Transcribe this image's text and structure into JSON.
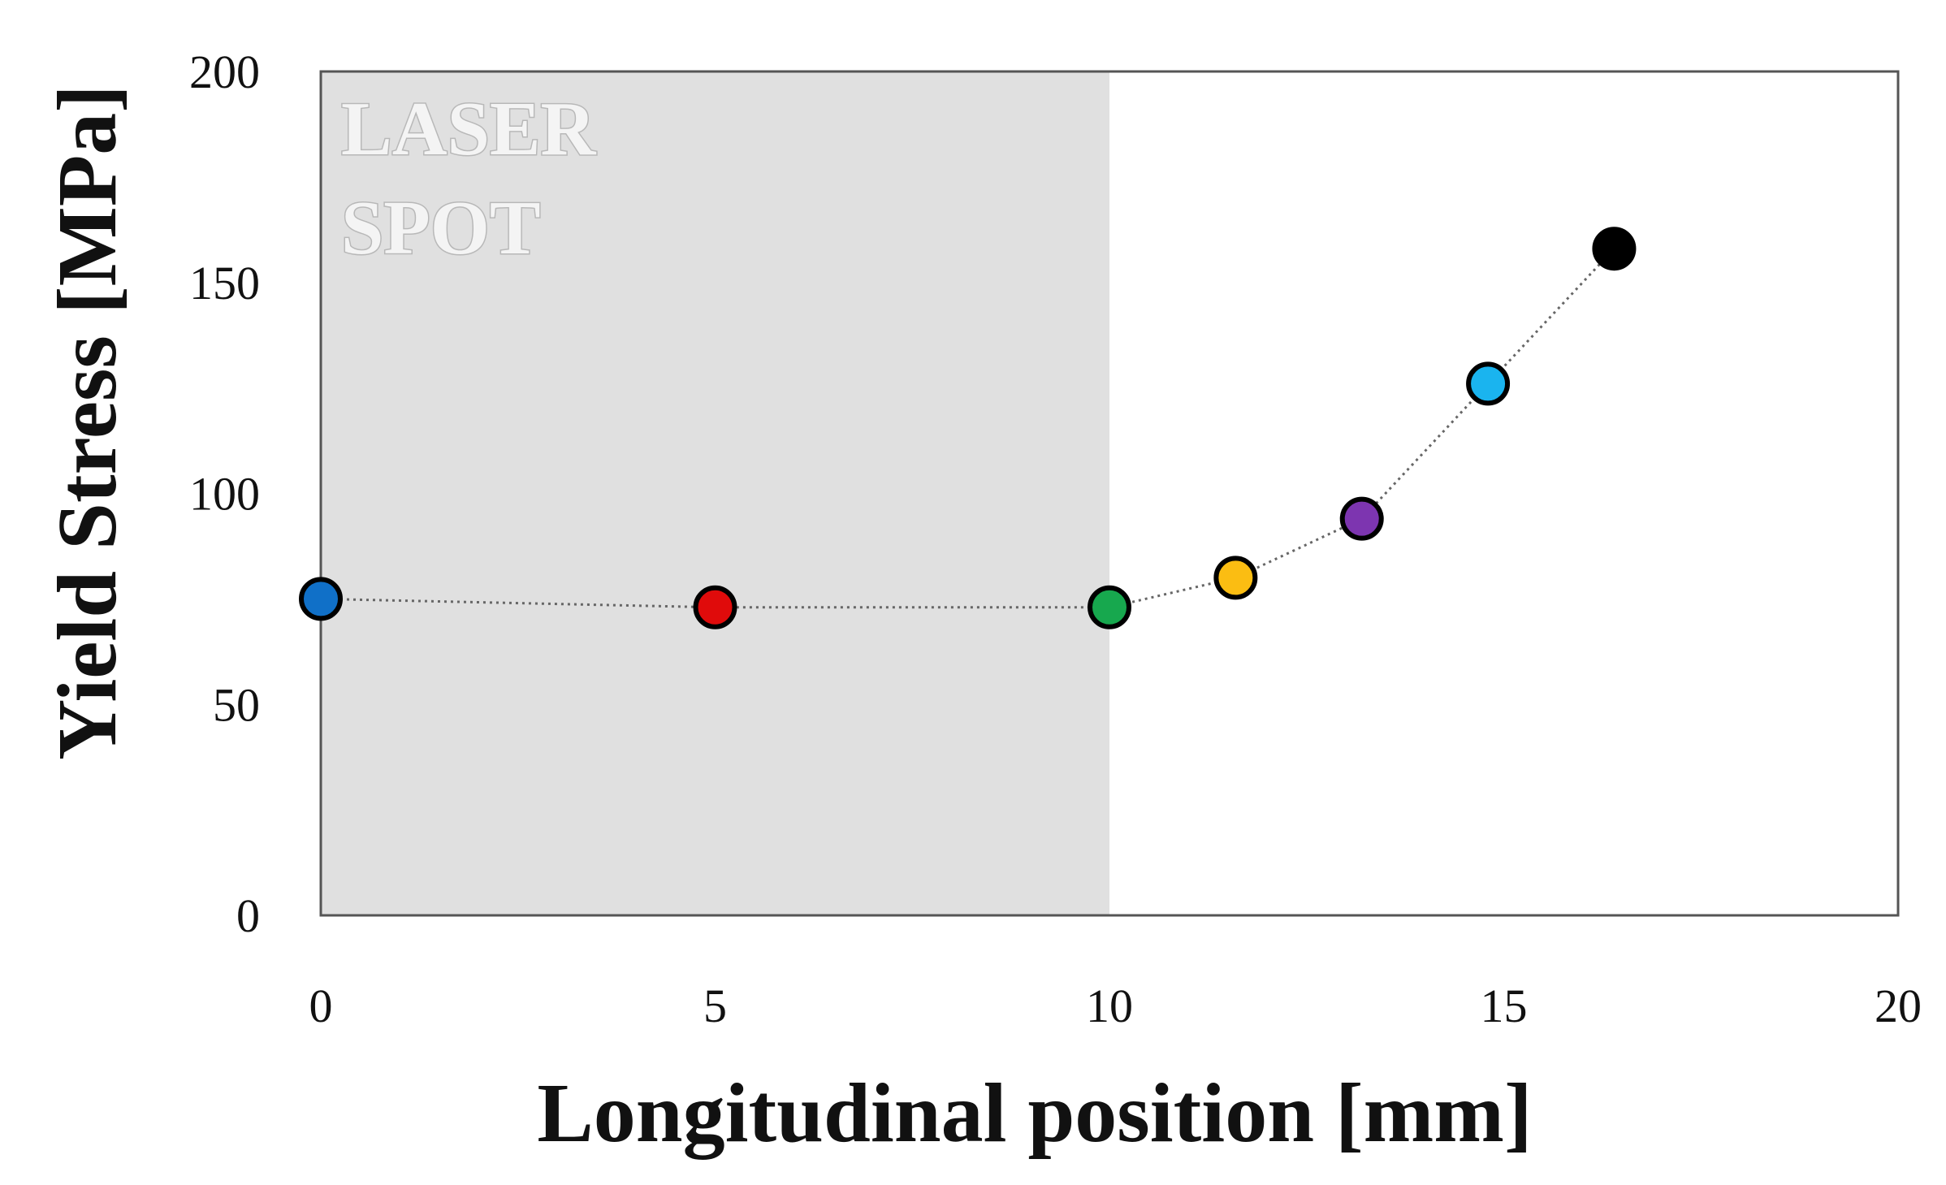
{
  "chart_data": {
    "type": "scatter",
    "title": "",
    "xlabel": "Longitudinal position [mm]",
    "ylabel": "Yield Stress [MPa]",
    "xlim": [
      0,
      20
    ],
    "ylim": [
      0,
      200
    ],
    "x_ticks": [
      "0",
      "5",
      "10",
      "15",
      "20"
    ],
    "y_ticks": [
      "0",
      "50",
      "100",
      "150",
      "200"
    ],
    "grid": false,
    "connector": "dotted line",
    "shaded_region": {
      "x_range": [
        0,
        10
      ],
      "label_lines": [
        "LASER",
        "SPOT"
      ],
      "color": "#e0e0e0"
    },
    "points": [
      {
        "x": 0.0,
        "y": 75,
        "color": "#1070c8"
      },
      {
        "x": 5.0,
        "y": 73,
        "color": "#e00b0b"
      },
      {
        "x": 10.0,
        "y": 73,
        "color": "#17a84e"
      },
      {
        "x": 11.6,
        "y": 80,
        "color": "#fbbd12"
      },
      {
        "x": 13.2,
        "y": 94,
        "color": "#7d35b0"
      },
      {
        "x": 14.8,
        "y": 126,
        "color": "#1ab4ef"
      },
      {
        "x": 16.4,
        "y": 158,
        "color": "#000000"
      }
    ]
  }
}
